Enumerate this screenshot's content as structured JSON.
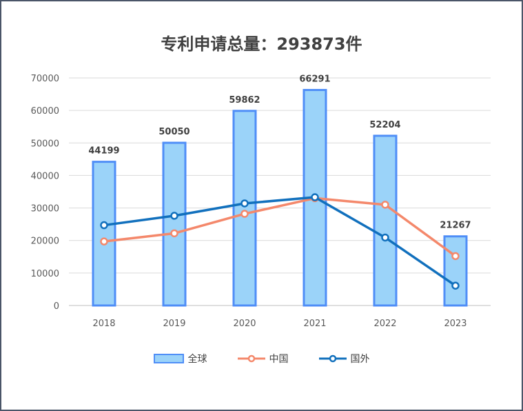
{
  "chart_data": {
    "type": "bar",
    "title": "专利申请总量：293873件",
    "categories": [
      "2018",
      "2019",
      "2020",
      "2021",
      "2022",
      "2023"
    ],
    "ylim": [
      0,
      70000
    ],
    "yticks": [
      "0",
      "10000",
      "20000",
      "30000",
      "40000",
      "50000",
      "60000",
      "70000"
    ],
    "grid": true,
    "legend_position": "bottom",
    "series": [
      {
        "name": "全球",
        "kind": "bar",
        "color": "#9bd3f9",
        "edge_color": "#4f8ef7",
        "values": [
          44199,
          50050,
          59862,
          66291,
          52204,
          21267
        ],
        "labels": [
          "44199",
          "50050",
          "59862",
          "66291",
          "52204",
          "21267"
        ]
      },
      {
        "name": "中国",
        "kind": "line",
        "color": "#f4886b",
        "values": [
          19700,
          22200,
          28200,
          33000,
          31000,
          15200
        ]
      },
      {
        "name": "国外",
        "kind": "line",
        "color": "#1170bd",
        "values": [
          24700,
          27600,
          31400,
          33300,
          20900,
          6100
        ]
      }
    ]
  }
}
